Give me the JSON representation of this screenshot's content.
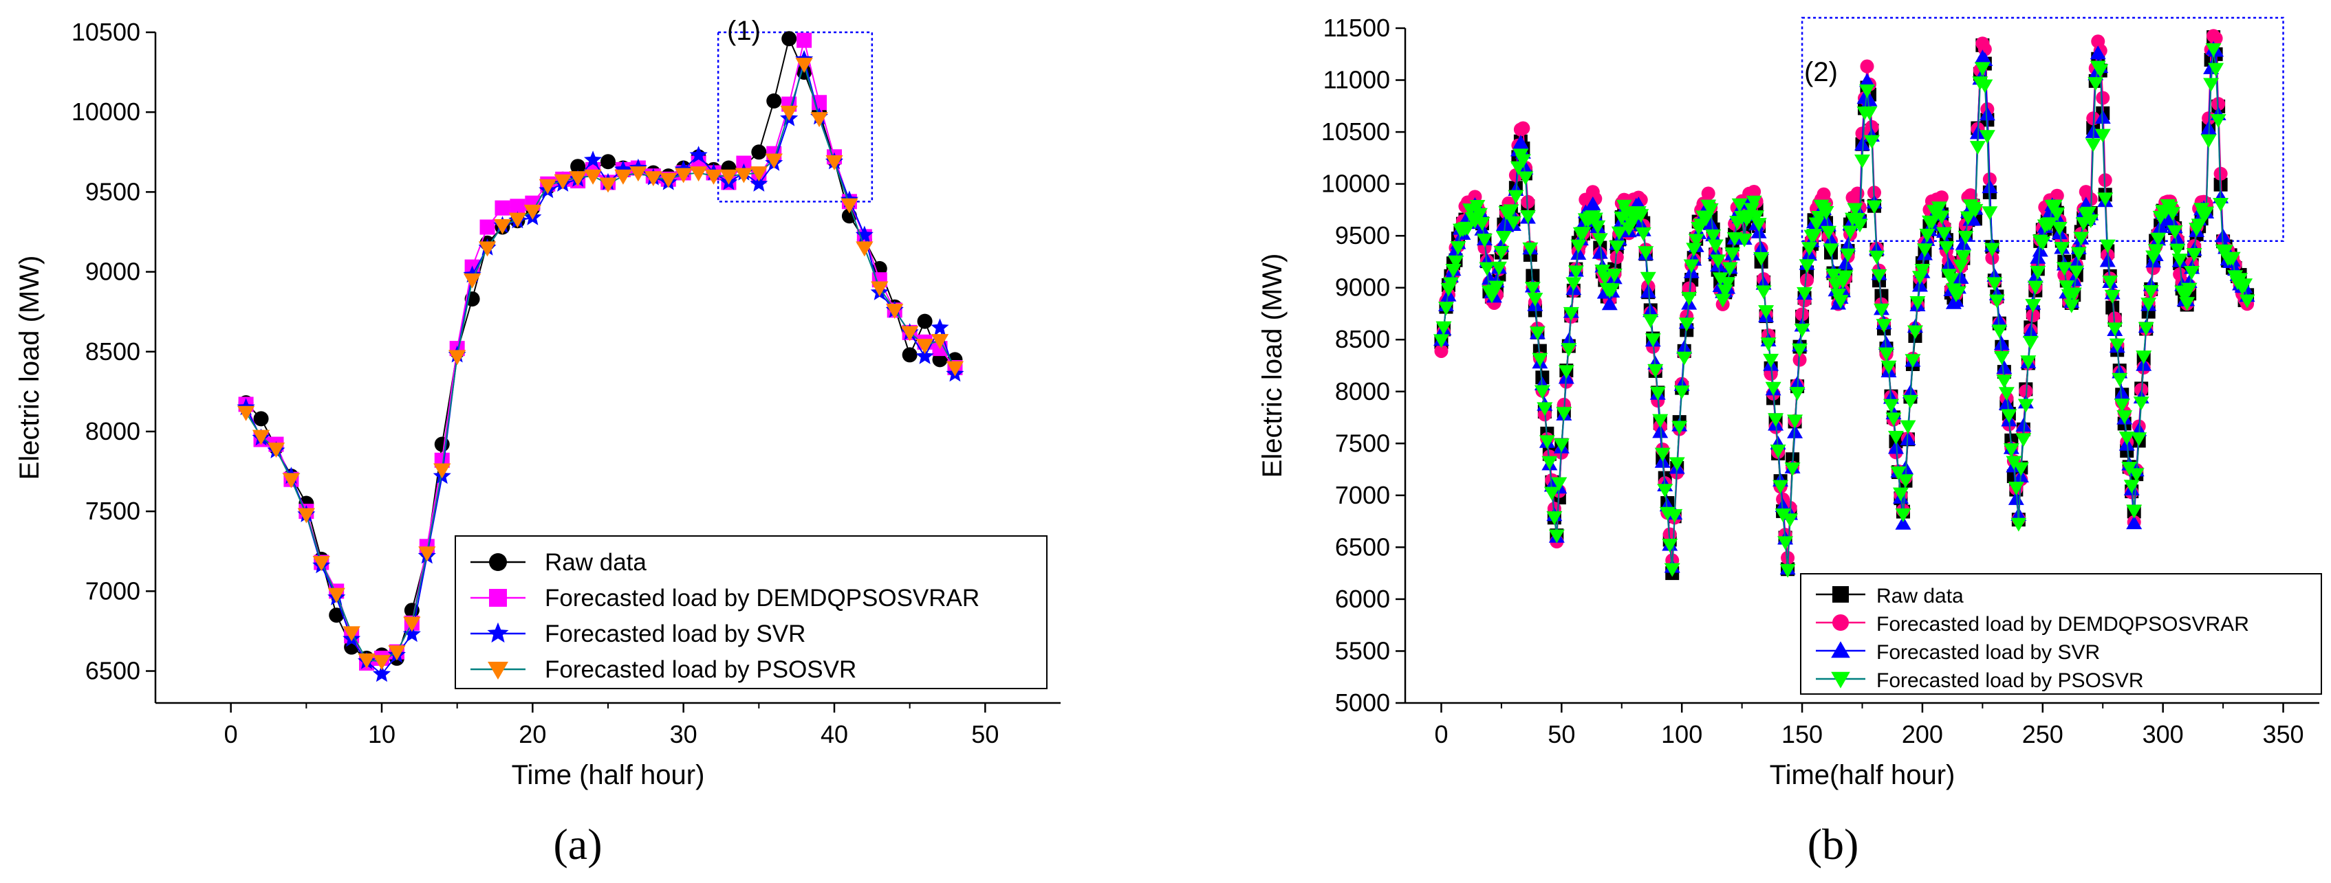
{
  "chart_data": [
    {
      "type": "line",
      "panel_label": "(a)",
      "inset_label": "(1)",
      "xlabel": "Time (half hour)",
      "ylabel": "Electric load (MW)",
      "xlim": [
        -5,
        55
      ],
      "ylim": [
        6300,
        10500
      ],
      "x_ticks": [
        0,
        10,
        20,
        30,
        40,
        50
      ],
      "y_ticks": [
        6500,
        7000,
        7500,
        8000,
        8500,
        9000,
        9500,
        10000,
        10500
      ],
      "grid": false,
      "legend_position": "lower-right",
      "highlight_box": {
        "x": [
          32.3,
          42.5
        ],
        "y": [
          9440,
          10500
        ]
      },
      "x": [
        1,
        2,
        3,
        4,
        5,
        6,
        7,
        8,
        9,
        10,
        11,
        12,
        13,
        14,
        15,
        16,
        17,
        18,
        19,
        20,
        21,
        22,
        23,
        24,
        25,
        26,
        27,
        28,
        29,
        30,
        31,
        32,
        33,
        34,
        35,
        36,
        37,
        38,
        39,
        40,
        41,
        42,
        43,
        44,
        45,
        46,
        47,
        48
      ],
      "series": [
        {
          "name": "Raw data",
          "color": "#000000",
          "marker": "circle",
          "values": [
            8180,
            8080,
            7900,
            7720,
            7550,
            7200,
            6850,
            6650,
            6580,
            6600,
            6580,
            6880,
            7250,
            7920,
            8500,
            8830,
            9180,
            9280,
            9320,
            9400,
            9530,
            9580,
            9660,
            9640,
            9690,
            9650,
            9650,
            9620,
            9600,
            9650,
            9720,
            9640,
            9650,
            9660,
            9750,
            10070,
            10460,
            10250,
            10000,
            9700,
            9350,
            9200,
            9020,
            8780,
            8480,
            8690,
            8450,
            8450
          ]
        },
        {
          "name": "Forecasted load by DEMDQPSOSVRAR",
          "color": "#ff00ff",
          "marker": "square",
          "values": [
            8170,
            7950,
            7920,
            7700,
            7500,
            7180,
            7000,
            6720,
            6550,
            6580,
            6620,
            6800,
            7280,
            7820,
            8520,
            9030,
            9280,
            9400,
            9410,
            9430,
            9550,
            9580,
            9570,
            9640,
            9560,
            9640,
            9650,
            9600,
            9580,
            9620,
            9680,
            9620,
            9560,
            9680,
            9600,
            9740,
            10050,
            10450,
            10060,
            9720,
            9440,
            9220,
            8950,
            8760,
            8620,
            8560,
            8520,
            8400
          ]
        },
        {
          "name": "Forecasted load by SVR",
          "color": "#0000ff",
          "marker": "star",
          "values": [
            8150,
            7960,
            7880,
            7720,
            7480,
            7160,
            6960,
            6700,
            6560,
            6480,
            6600,
            6730,
            7220,
            7720,
            8480,
            8980,
            9150,
            9290,
            9320,
            9340,
            9510,
            9550,
            9580,
            9700,
            9560,
            9640,
            9650,
            9590,
            9560,
            9640,
            9730,
            9620,
            9560,
            9620,
            9550,
            9680,
            9960,
            10330,
            9970,
            9690,
            9450,
            9230,
            8870,
            8760,
            8620,
            8470,
            8650,
            8360
          ]
        },
        {
          "name": "Forecasted load by PSOSVR",
          "color": "#ff8000",
          "line_color": "#008080",
          "marker": "triangle-down",
          "values": [
            8120,
            7970,
            7890,
            7700,
            7480,
            7180,
            6980,
            6740,
            6570,
            6560,
            6620,
            6800,
            7240,
            7760,
            8470,
            8950,
            9150,
            9290,
            9330,
            9380,
            9540,
            9570,
            9590,
            9600,
            9550,
            9600,
            9620,
            9590,
            9580,
            9610,
            9620,
            9600,
            9600,
            9610,
            9620,
            9700,
            10000,
            10300,
            9960,
            9690,
            9420,
            9150,
            8900,
            8760,
            8620,
            8540,
            8570,
            8400
          ]
        }
      ],
      "legend": [
        "Raw data",
        "Forecasted load by DEMDQPSOSVRAR",
        "Forecasted load by SVR",
        "Forecasted load by PSOSVR"
      ]
    },
    {
      "type": "line",
      "panel_label": "(b)",
      "inset_label": "(2)",
      "xlabel": "Time(half hour)",
      "ylabel": "Electric load (MW)",
      "xlim": [
        -15,
        365
      ],
      "ylim": [
        5000,
        11500
      ],
      "x_ticks": [
        0,
        50,
        100,
        150,
        200,
        250,
        300,
        350
      ],
      "y_ticks": [
        5000,
        5500,
        6000,
        6500,
        7000,
        7500,
        8000,
        8500,
        9000,
        9500,
        10000,
        10500,
        11000,
        11500
      ],
      "grid": false,
      "legend_position": "lower-right",
      "highlight_box": {
        "x": [
          150,
          350
        ],
        "y": [
          9450,
          11600
        ]
      },
      "x_start": 0,
      "x_step": 1,
      "count": 336,
      "day_profiles": [
        {
          "start": 0,
          "end": 48,
          "min": 6600,
          "max": 10440,
          "end_level": 6600
        },
        {
          "start": 48,
          "end": 96,
          "min": 6450,
          "max": 9760,
          "end_level": 6300
        },
        {
          "start": 96,
          "end": 144,
          "min": 6250,
          "max": 9790,
          "end_level": 6350
        },
        {
          "start": 144,
          "end": 192,
          "min": 6380,
          "max": 10970,
          "end_level": 6800
        },
        {
          "start": 192,
          "end": 240,
          "min": 6750,
          "max": 11260,
          "end_level": 6800
        },
        {
          "start": 240,
          "end": 288,
          "min": 6760,
          "max": 11280,
          "end_level": 6800
        },
        {
          "start": 288,
          "end": 336,
          "min": 6800,
          "max": 11370,
          "end_level": 8850
        }
      ],
      "series": [
        {
          "name": "Raw data",
          "color": "#000000",
          "marker": "square",
          "offset": 0
        },
        {
          "name": "Forecasted load by DEMDQPSOSVRAR",
          "color": "#ff0080",
          "marker": "circle",
          "offset": 1
        },
        {
          "name": "Forecasted load by SVR",
          "color": "#0000ff",
          "marker": "triangle-up",
          "offset": 2
        },
        {
          "name": "Forecasted load by PSOSVR",
          "color": "#00ff00",
          "line_color": "#008080",
          "marker": "triangle-down",
          "offset": 3
        }
      ],
      "legend": [
        "Raw data",
        "Forecasted load by DEMDQPSOSVRAR",
        "Forecasted load by SVR",
        "Forecasted load by PSOSVR"
      ]
    }
  ]
}
